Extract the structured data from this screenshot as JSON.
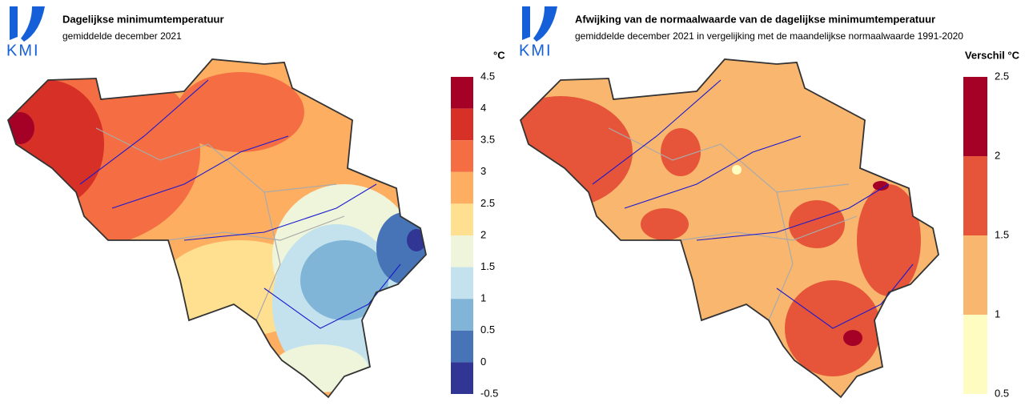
{
  "panels": [
    {
      "logo": "KMI",
      "title": "Dagelijkse minimumtemperatuur",
      "subtitle": "gemiddelde december 2021",
      "unit": "°C",
      "legend": {
        "labels": [
          "4.5",
          "4",
          "3.5",
          "3",
          "2.5",
          "2",
          "1.5",
          "1",
          "0.5",
          "0",
          "-0.5"
        ],
        "colors": [
          "#a50026",
          "#d73027",
          "#f46d43",
          "#fdae61",
          "#fee090",
          "#eef5da",
          "#c3e2ee",
          "#80b5d7",
          "#4674b6",
          "#313695"
        ]
      }
    },
    {
      "logo": "KMI",
      "title": "Afwijking van de normaalwaarde van de dagelijkse minimumtemperatuur",
      "subtitle": "gemiddelde december 2021 in vergelijking met de maandelijkse normaalwaarde 1991-2020",
      "unit": "Verschil °C",
      "legend": {
        "labels": [
          "2.5",
          "2",
          "1.5",
          "1",
          "0.5"
        ],
        "colors": [
          "#a50026",
          "#e6553a",
          "#f9b66e",
          "#fefcc0"
        ]
      }
    }
  ]
}
